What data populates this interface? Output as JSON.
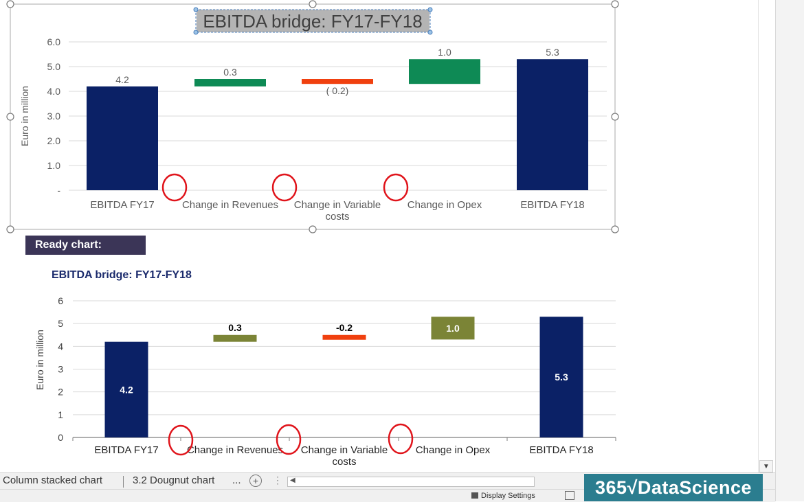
{
  "top_chart": {
    "chart_data": {
      "type": "bar",
      "subtype": "waterfall",
      "title": "EBITDA bridge: FY17-FY18",
      "ylabel": "Euro in million",
      "ylim": [
        0,
        6
      ],
      "y_ticks": [
        "-",
        "1.0",
        "2.0",
        "3.0",
        "4.0",
        "5.0",
        "6.0"
      ],
      "categories": [
        "EBITDA FY17",
        "Change in Revenues",
        "Change in Variable costs",
        "Change in Opex",
        "EBITDA FY18"
      ],
      "category_lines": [
        [
          "EBITDA FY17"
        ],
        [
          "Change in Revenues"
        ],
        [
          "Change in Variable",
          "costs"
        ],
        [
          "Change in Opex"
        ],
        [
          "EBITDA FY18"
        ]
      ],
      "values": [
        4.2,
        0.3,
        -0.2,
        1.0,
        5.3
      ],
      "bar_base": [
        0,
        4.2,
        4.3,
        4.3,
        0
      ],
      "bar_top": [
        4.2,
        4.5,
        4.5,
        5.3,
        5.3
      ],
      "data_labels": [
        "4.2",
        "0.3",
        "( 0.2)",
        "1.0",
        "5.3"
      ],
      "bar_colors": [
        "#0b2166",
        "#0e8a55",
        "#f0400f",
        "#0e8a55",
        "#0b2166"
      ],
      "grid": true,
      "legend": "none"
    }
  },
  "ready_chart_label": "Ready chart:",
  "bottom_chart": {
    "chart_data": {
      "type": "bar",
      "subtype": "waterfall",
      "title": "EBITDA bridge: FY17-FY18",
      "ylabel": "Euro in million",
      "ylim": [
        0,
        6
      ],
      "y_ticks": [
        "0",
        "1",
        "2",
        "3",
        "4",
        "5",
        "6"
      ],
      "categories": [
        "EBITDA FY17",
        "Change in Revenues",
        "Change in Variable costs",
        "Change in Opex",
        "EBITDA FY18"
      ],
      "category_lines": [
        [
          "EBITDA FY17"
        ],
        [
          "Change in Revenues"
        ],
        [
          "Change in Variable",
          "costs"
        ],
        [
          "Change in Opex"
        ],
        [
          "EBITDA FY18"
        ]
      ],
      "values": [
        4.2,
        0.3,
        -0.2,
        1.0,
        5.3
      ],
      "bar_base": [
        0,
        4.2,
        4.3,
        4.3,
        0
      ],
      "bar_top": [
        4.2,
        4.5,
        4.5,
        5.3,
        5.3
      ],
      "data_labels": [
        "4.2",
        "0.3",
        "-0.2",
        "1.0",
        "5.3"
      ],
      "label_positions": [
        "inside",
        "above",
        "above",
        "inside",
        "inside"
      ],
      "bar_colors": [
        "#0b2166",
        "#7b8436",
        "#f0400f",
        "#7b8436",
        "#0b2166"
      ],
      "grid": true,
      "legend": "none"
    }
  },
  "sheet_tabs": [
    "Column stacked chart",
    "3.2 Dougnut chart"
  ],
  "tab_overflow": "...",
  "add_sheet_symbol": "+",
  "status_bar": {
    "display_settings": "Display Settings"
  },
  "brand": "365√DataScience",
  "colors": {
    "navy": "#0b2166",
    "green": "#0e8a55",
    "olive": "#7b8436",
    "red": "#f0400f",
    "annotation": "#e0141b",
    "brand_bg": "#2b7d8f",
    "label_bg": "#3b3557"
  }
}
